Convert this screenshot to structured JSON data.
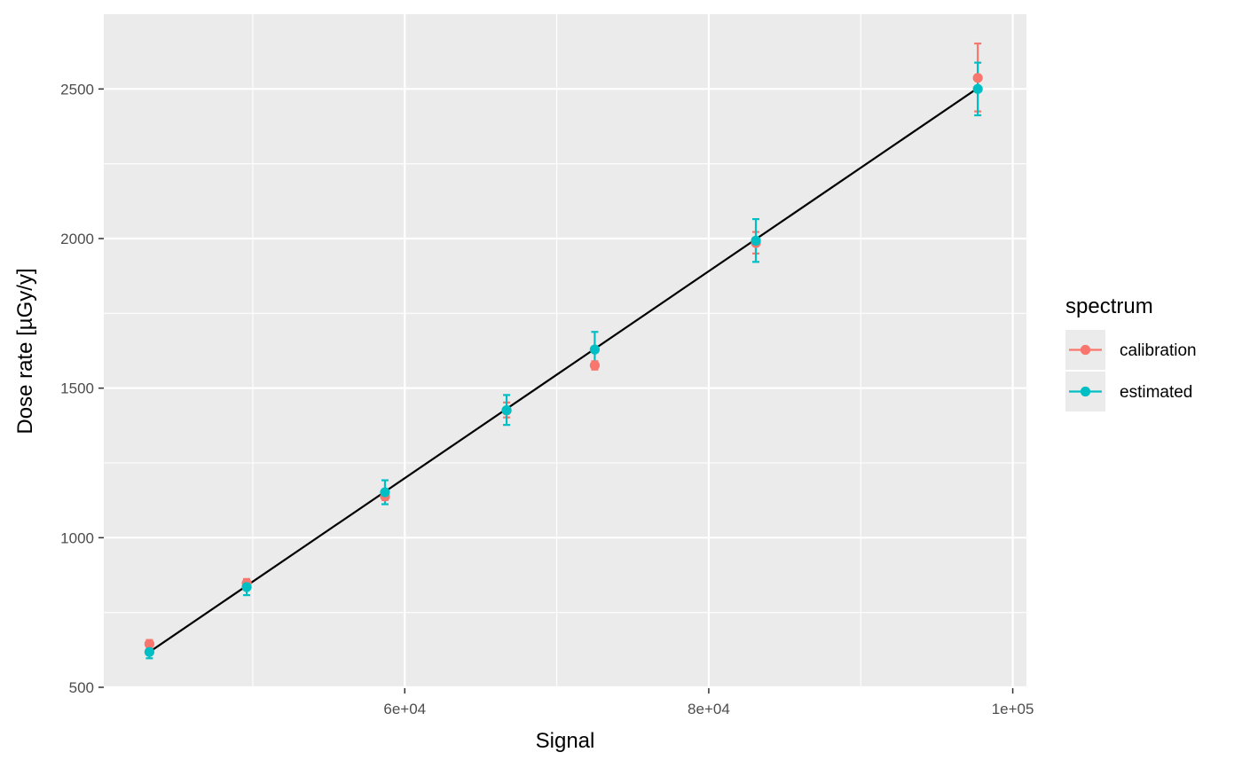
{
  "chart_data": {
    "type": "scatter",
    "xlabel": "Signal",
    "ylabel": "Dose rate [µGy/y]",
    "xlim": [
      40200,
      100900
    ],
    "ylim": [
      497,
      2750
    ],
    "x_ticks": [
      60000,
      80000,
      100000
    ],
    "x_tick_labels": [
      "6e+04",
      "8e+04",
      "1e+05"
    ],
    "y_ticks": [
      500,
      1000,
      1500,
      2000,
      2500
    ],
    "y_tick_labels": [
      "500",
      "1000",
      "1500",
      "2000",
      "2500"
    ],
    "grid": true,
    "legend": {
      "title": "spectrum",
      "position": "right"
    },
    "fit_line": {
      "x": [
        43200,
        97700
      ],
      "y": [
        618,
        2503
      ],
      "color": "#000000"
    },
    "series": [
      {
        "name": "calibration",
        "color": "#F8766D",
        "points": [
          {
            "x": 43200,
            "y": 645,
            "ymin": 632,
            "ymax": 658
          },
          {
            "x": 49600,
            "y": 848,
            "ymin": 836,
            "ymax": 862
          },
          {
            "x": 58700,
            "y": 1138,
            "ymin": 1126,
            "ymax": 1152
          },
          {
            "x": 66700,
            "y": 1425,
            "ymin": 1402,
            "ymax": 1452
          },
          {
            "x": 72500,
            "y": 1576,
            "ymin": 1562,
            "ymax": 1590
          },
          {
            "x": 83100,
            "y": 1985,
            "ymin": 1950,
            "ymax": 2022
          },
          {
            "x": 97700,
            "y": 2537,
            "ymin": 2425,
            "ymax": 2652
          }
        ]
      },
      {
        "name": "estimated",
        "color": "#00BFC4",
        "points": [
          {
            "x": 43200,
            "y": 618,
            "ymin": 597,
            "ymax": 640
          },
          {
            "x": 49600,
            "y": 835,
            "ymin": 808,
            "ymax": 858
          },
          {
            "x": 58700,
            "y": 1152,
            "ymin": 1112,
            "ymax": 1192
          },
          {
            "x": 66700,
            "y": 1426,
            "ymin": 1377,
            "ymax": 1477
          },
          {
            "x": 72500,
            "y": 1629,
            "ymin": 1570,
            "ymax": 1688
          },
          {
            "x": 83100,
            "y": 1993,
            "ymin": 1922,
            "ymax": 2065
          },
          {
            "x": 97700,
            "y": 2500,
            "ymin": 2412,
            "ymax": 2588
          }
        ]
      }
    ]
  }
}
